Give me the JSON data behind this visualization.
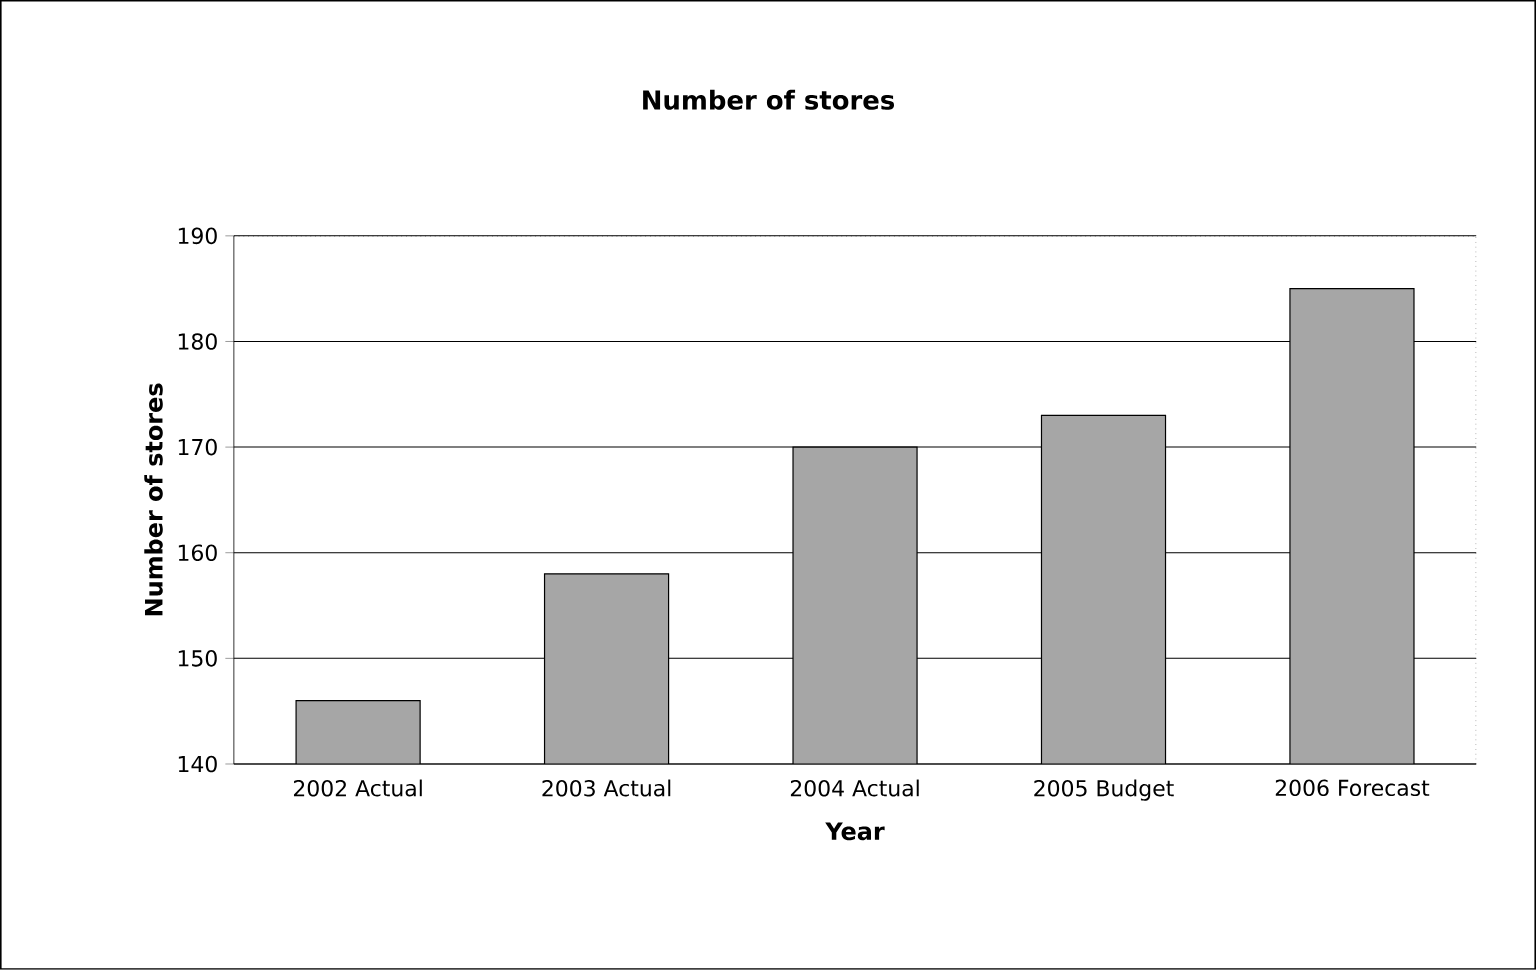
{
  "chart_data": {
    "type": "bar",
    "title": "Number of stores",
    "xlabel": "Year",
    "ylabel": "Number of stores",
    "categories": [
      "2002 Actual",
      "2003 Actual",
      "2004 Actual",
      "2005 Budget",
      "2006 Forecast"
    ],
    "values": [
      146,
      158,
      170,
      173,
      185
    ],
    "color": "#a6a6a6",
    "ylim": [
      140,
      190
    ],
    "yticks": [
      140,
      150,
      160,
      170,
      180,
      190
    ],
    "grid": "y"
  }
}
